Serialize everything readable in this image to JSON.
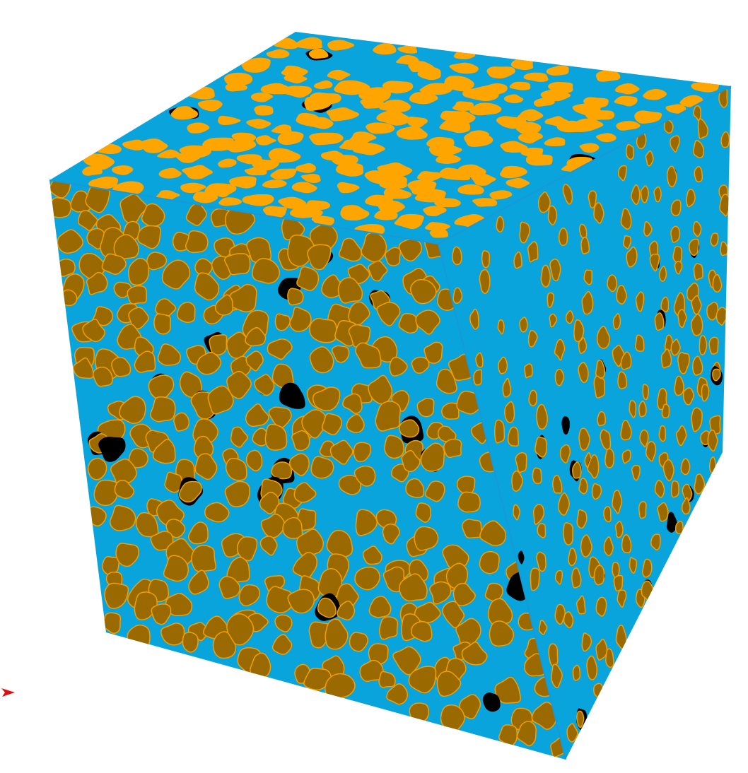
{
  "scene": {
    "subject": "porous-rock-cube",
    "colors": {
      "background": "#ffffff",
      "pore_fluid": "#0aa4dc",
      "grain_top": "#ffa500",
      "grain_side": "#9a6a00",
      "grain_side_edge": "#f0a000",
      "void": "#000000",
      "cube_edge": "#1899d6"
    },
    "axis_marker": {
      "icon": "axis-arrow-icon",
      "color": "#e01010"
    }
  }
}
